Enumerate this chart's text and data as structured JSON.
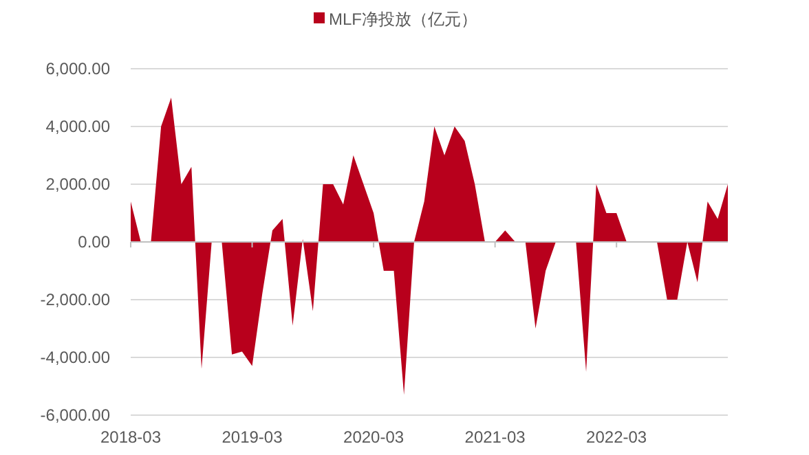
{
  "chart_data": {
    "type": "area",
    "categories": [
      "2018-03",
      null,
      null,
      null,
      null,
      null,
      null,
      null,
      null,
      null,
      null,
      null,
      "2019-03",
      null,
      null,
      null,
      null,
      null,
      null,
      null,
      null,
      null,
      null,
      null,
      "2020-03",
      null,
      null,
      null,
      null,
      null,
      null,
      null,
      null,
      null,
      null,
      null,
      "2021-03",
      null,
      null,
      null,
      null,
      null,
      null,
      null,
      null,
      null,
      null,
      null,
      "2022-03",
      null,
      null,
      null,
      null,
      null,
      null,
      null,
      null,
      null,
      null,
      null
    ],
    "series": [
      {
        "name": "MLF净投放（亿元）",
        "color": "#b8001c",
        "values": [
          1400,
          0,
          0,
          4000,
          5000,
          2000,
          2600,
          -4400,
          0,
          0,
          -3900,
          -3800,
          -4300,
          -1800,
          400,
          800,
          -2900,
          100,
          -2400,
          2000,
          2000,
          1300,
          3000,
          2000,
          1000,
          -1000,
          -1000,
          -5300,
          0,
          1400,
          4000,
          3000,
          4000,
          3500,
          2000,
          0,
          0,
          400,
          0,
          0,
          -3000,
          -1000,
          0,
          0,
          0,
          -4500,
          2000,
          1000,
          1000,
          0,
          0,
          0,
          0,
          -2000,
          -2000,
          0,
          -1400,
          1400,
          800,
          2000
        ]
      }
    ],
    "ylim": [
      -6000,
      6000
    ],
    "yticks": [
      {
        "value": -6000,
        "label": "-6,000.00"
      },
      {
        "value": -4000,
        "label": "-4,000.00"
      },
      {
        "value": -2000,
        "label": "-2,000.00"
      },
      {
        "value": 0,
        "label": "0.00"
      },
      {
        "value": 2000,
        "label": "2,000.00"
      },
      {
        "value": 4000,
        "label": "4,000.00"
      },
      {
        "value": 6000,
        "label": "6,000.00"
      }
    ],
    "grid": "y",
    "legend": "top"
  }
}
